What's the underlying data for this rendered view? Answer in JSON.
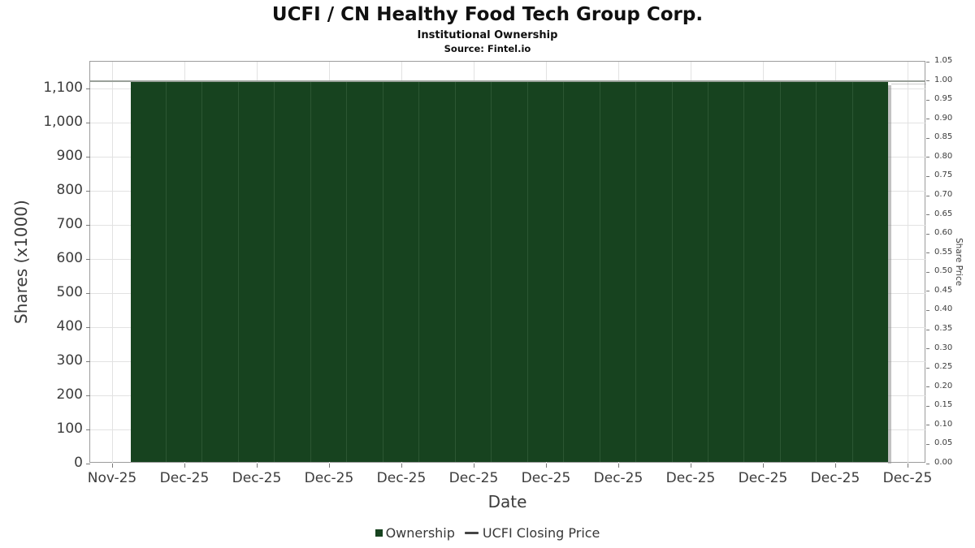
{
  "chart_data": {
    "type": "bar",
    "title": "UCFI / CN Healthy Food Tech Group Corp.",
    "subtitle": "Institutional Ownership",
    "source": "Source: Fintel.io",
    "xlabel": "Date",
    "ylabel_left": "Shares (x1000)",
    "ylabel_right": "Share Price",
    "legend": [
      "Ownership",
      "UCFI Closing Price"
    ],
    "legend_position": "bottom",
    "grid": true,
    "x_tick_labels": [
      "Nov-25",
      "Dec-25",
      "Dec-25",
      "Dec-25",
      "Dec-25",
      "Dec-25",
      "Dec-25",
      "Dec-25",
      "Dec-25",
      "Dec-25",
      "Dec-25",
      "Dec-25"
    ],
    "ylim_left": [
      0,
      1178.6
    ],
    "ylim_right": [
      0,
      1.05
    ],
    "y_left_ticks": [
      {
        "value": 0,
        "label": "0"
      },
      {
        "value": 100,
        "label": "100"
      },
      {
        "value": 200,
        "label": "200"
      },
      {
        "value": 300,
        "label": "300"
      },
      {
        "value": 400,
        "label": "400"
      },
      {
        "value": 500,
        "label": "500"
      },
      {
        "value": 600,
        "label": "600"
      },
      {
        "value": 700,
        "label": "700"
      },
      {
        "value": 800,
        "label": "800"
      },
      {
        "value": 900,
        "label": "900"
      },
      {
        "value": 1000,
        "label": "1,000"
      },
      {
        "value": 1100,
        "label": "1,100"
      }
    ],
    "y_right_ticks": [
      {
        "value": 0.0,
        "label": "0.00"
      },
      {
        "value": 0.05,
        "label": "0.05"
      },
      {
        "value": 0.1,
        "label": "0.10"
      },
      {
        "value": 0.15,
        "label": "0.15"
      },
      {
        "value": 0.2,
        "label": "0.20"
      },
      {
        "value": 0.25,
        "label": "0.25"
      },
      {
        "value": 0.3,
        "label": "0.30"
      },
      {
        "value": 0.35,
        "label": "0.35"
      },
      {
        "value": 0.4,
        "label": "0.40"
      },
      {
        "value": 0.45,
        "label": "0.45"
      },
      {
        "value": 0.5,
        "label": "0.50"
      },
      {
        "value": 0.55,
        "label": "0.55"
      },
      {
        "value": 0.6,
        "label": "0.60"
      },
      {
        "value": 0.65,
        "label": "0.65"
      },
      {
        "value": 0.7,
        "label": "0.70"
      },
      {
        "value": 0.75,
        "label": "0.75"
      },
      {
        "value": 0.8,
        "label": "0.80"
      },
      {
        "value": 0.85,
        "label": "0.85"
      },
      {
        "value": 0.9,
        "label": "0.90"
      },
      {
        "value": 0.95,
        "label": "0.95"
      },
      {
        "value": 1.0,
        "label": "1.00"
      },
      {
        "value": 1.05,
        "label": "1.05"
      }
    ],
    "series": [
      {
        "name": "Ownership",
        "type": "bar",
        "axis": "left",
        "values": [
          1120,
          1120,
          1120,
          1120,
          1120,
          1120,
          1120,
          1120,
          1120,
          1120,
          1120,
          1120,
          1120,
          1120,
          1120,
          1120,
          1120,
          1120,
          1120,
          1120,
          1120
        ]
      },
      {
        "name": "UCFI Closing Price",
        "type": "line",
        "axis": "right",
        "value": 1.0
      }
    ],
    "colors": {
      "bar_fill": "#17431f",
      "bar_edge": "#2c5733",
      "price_line": "#9aa19a",
      "legend_line": "#454545",
      "grid": "#e2e2e2",
      "axis_border": "#9c9c9c",
      "tick": "#787878",
      "shadow": "#8f8f8f",
      "text": "#3c3c3c"
    }
  }
}
